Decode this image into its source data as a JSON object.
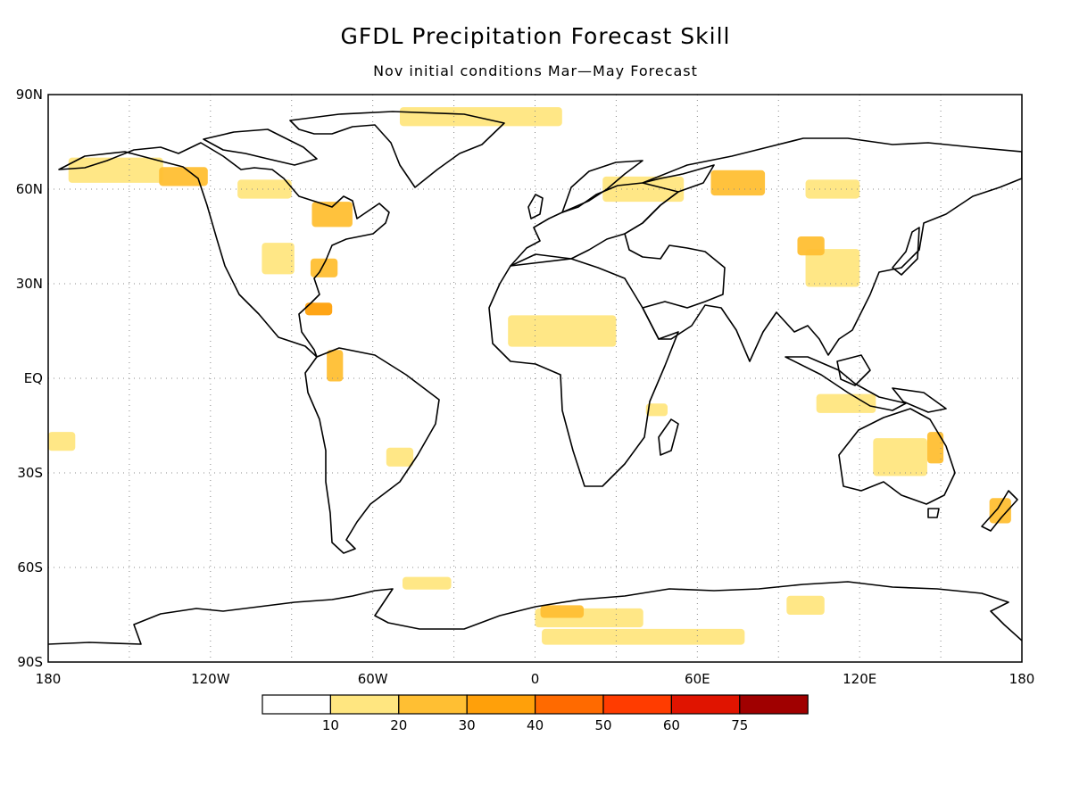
{
  "title": "GFDL Precipitation Forecast Skill",
  "subtitle": "Nov initial conditions   Mar—May Forecast",
  "axes": {
    "lat_labels": [
      "90N",
      "60N",
      "30N",
      "EQ",
      "30S",
      "60S",
      "90S"
    ],
    "lon_labels": [
      "180",
      "120W",
      "60W",
      "0",
      "60E",
      "120E",
      "180"
    ]
  },
  "colorbar": {
    "ticks": [
      "10",
      "20",
      "30",
      "40",
      "50",
      "60",
      "75"
    ],
    "colors": [
      "#ffffff",
      "#ffe680",
      "#ffbf33",
      "#ffa00a",
      "#ff6a00",
      "#ff3c00",
      "#e01400",
      "#a00000"
    ]
  },
  "map_data": {
    "projection": "equirectangular",
    "lon_range": [
      -180,
      180
    ],
    "lat_range": [
      -90,
      90
    ],
    "grid": "dotted, every 30 degrees",
    "skill_regions": [
      {
        "lon": -20,
        "lat": 83,
        "w": 60,
        "h": 6,
        "level": 1
      },
      {
        "lon": -155,
        "lat": 66,
        "w": 35,
        "h": 8,
        "level": 1
      },
      {
        "lon": -130,
        "lat": 64,
        "w": 18,
        "h": 6,
        "level": 2
      },
      {
        "lon": -100,
        "lat": 60,
        "w": 20,
        "h": 6,
        "level": 1
      },
      {
        "lon": -75,
        "lat": 52,
        "w": 15,
        "h": 8,
        "level": 2
      },
      {
        "lon": -95,
        "lat": 38,
        "w": 12,
        "h": 10,
        "level": 1
      },
      {
        "lon": -78,
        "lat": 35,
        "w": 10,
        "h": 6,
        "level": 2
      },
      {
        "lon": -80,
        "lat": 22,
        "w": 10,
        "h": 4,
        "level": 3
      },
      {
        "lon": -74,
        "lat": 4,
        "w": 6,
        "h": 10,
        "level": 2
      },
      {
        "lon": -50,
        "lat": -25,
        "w": 10,
        "h": 6,
        "level": 1
      },
      {
        "lon": -40,
        "lat": -65,
        "w": 18,
        "h": 4,
        "level": 1
      },
      {
        "lon": -175,
        "lat": -20,
        "w": 10,
        "h": 6,
        "level": 1
      },
      {
        "lon": 40,
        "lat": 60,
        "w": 30,
        "h": 8,
        "level": 1
      },
      {
        "lon": 75,
        "lat": 62,
        "w": 20,
        "h": 8,
        "level": 2
      },
      {
        "lon": 110,
        "lat": 60,
        "w": 20,
        "h": 6,
        "level": 1
      },
      {
        "lon": 110,
        "lat": 35,
        "w": 20,
        "h": 12,
        "level": 1
      },
      {
        "lon": 102,
        "lat": 42,
        "w": 10,
        "h": 6,
        "level": 2
      },
      {
        "lon": 10,
        "lat": 15,
        "w": 40,
        "h": 10,
        "level": 1
      },
      {
        "lon": 45,
        "lat": -10,
        "w": 8,
        "h": 4,
        "level": 1
      },
      {
        "lon": 115,
        "lat": -8,
        "w": 22,
        "h": 6,
        "level": 1
      },
      {
        "lon": 135,
        "lat": -25,
        "w": 20,
        "h": 12,
        "level": 1
      },
      {
        "lon": 148,
        "lat": -22,
        "w": 6,
        "h": 10,
        "level": 2
      },
      {
        "lon": 172,
        "lat": -42,
        "w": 8,
        "h": 8,
        "level": 2
      },
      {
        "lon": 20,
        "lat": -76,
        "w": 40,
        "h": 6,
        "level": 1
      },
      {
        "lon": 10,
        "lat": -74,
        "w": 16,
        "h": 4,
        "level": 2
      },
      {
        "lon": 40,
        "lat": -82,
        "w": 75,
        "h": 5,
        "level": 1
      },
      {
        "lon": 100,
        "lat": -72,
        "w": 14,
        "h": 6,
        "level": 1
      }
    ]
  }
}
